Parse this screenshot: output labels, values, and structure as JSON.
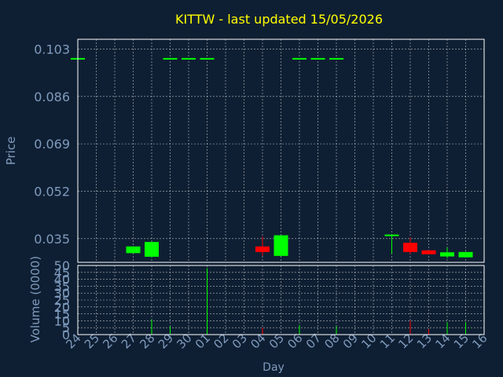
{
  "chart_data": {
    "type": "candlestick",
    "title": "KITTW - last updated 15/05/2026",
    "xlabel": "Day",
    "ylabel_price": "Price",
    "ylabel_volume": "Volume (0000)",
    "x_ticks": [
      "24",
      "25",
      "26",
      "27",
      "28",
      "29",
      "30",
      "01",
      "02",
      "03",
      "04",
      "05",
      "06",
      "07",
      "08",
      "09",
      "10",
      "11",
      "12",
      "13",
      "14",
      "15",
      "16"
    ],
    "price_ticks": [
      "0.103",
      "0.086",
      "0.069",
      "0.052",
      "0.035"
    ],
    "price_ylim": [
      0.0265,
      0.1065
    ],
    "volume_ticks": [
      "50",
      "45",
      "40",
      "35",
      "30",
      "25",
      "20",
      "15",
      "10",
      "5",
      "0"
    ],
    "volume_ylim": [
      0,
      50
    ],
    "grid": true,
    "candles": [
      {
        "day": "24",
        "open": 0.0995,
        "close": 0.0995,
        "high": 0.0995,
        "low": 0.0995,
        "volume": 0
      },
      {
        "day": "27",
        "open": 0.0298,
        "close": 0.0322,
        "high": 0.0322,
        "low": 0.0298,
        "volume": 0
      },
      {
        "day": "28",
        "open": 0.0285,
        "close": 0.0338,
        "high": 0.0338,
        "low": 0.0283,
        "volume": 11
      },
      {
        "day": "29",
        "open": 0.0995,
        "close": 0.0995,
        "high": 0.0995,
        "low": 0.0995,
        "volume": 6
      },
      {
        "day": "30",
        "open": 0.0995,
        "close": 0.0995,
        "high": 0.0995,
        "low": 0.0995,
        "volume": 0
      },
      {
        "day": "01",
        "open": 0.0995,
        "close": 0.0995,
        "high": 0.0995,
        "low": 0.0995,
        "volume": 48
      },
      {
        "day": "04",
        "open": 0.0322,
        "close": 0.0302,
        "high": 0.0357,
        "low": 0.0288,
        "volume": 5
      },
      {
        "day": "05",
        "open": 0.0288,
        "close": 0.0362,
        "high": 0.0362,
        "low": 0.0288,
        "volume": 0
      },
      {
        "day": "06",
        "open": 0.0995,
        "close": 0.0995,
        "high": 0.0995,
        "low": 0.0995,
        "volume": 7
      },
      {
        "day": "07",
        "open": 0.0995,
        "close": 0.0995,
        "high": 0.0995,
        "low": 0.0995,
        "volume": 0
      },
      {
        "day": "08",
        "open": 0.0995,
        "close": 0.0995,
        "high": 0.0995,
        "low": 0.0995,
        "volume": 6
      },
      {
        "day": "11",
        "open": 0.0362,
        "close": 0.0362,
        "high": 0.0362,
        "low": 0.0295,
        "volume": 0
      },
      {
        "day": "12",
        "open": 0.0335,
        "close": 0.0302,
        "high": 0.0355,
        "low": 0.0295,
        "volume": 10
      },
      {
        "day": "13",
        "open": 0.0308,
        "close": 0.0294,
        "high": 0.0308,
        "low": 0.0294,
        "volume": 4
      },
      {
        "day": "14",
        "open": 0.0286,
        "close": 0.0301,
        "high": 0.0318,
        "low": 0.028,
        "volume": 9
      },
      {
        "day": "15",
        "open": 0.0283,
        "close": 0.0302,
        "high": 0.0302,
        "low": 0.0283,
        "volume": 9
      }
    ],
    "colors": {
      "background": "#0f1f33",
      "axis_text": "#7f9bbd",
      "title": "#ffff00",
      "grid": "#ffffff",
      "up": "#00ff00",
      "down": "#ff0000"
    }
  }
}
